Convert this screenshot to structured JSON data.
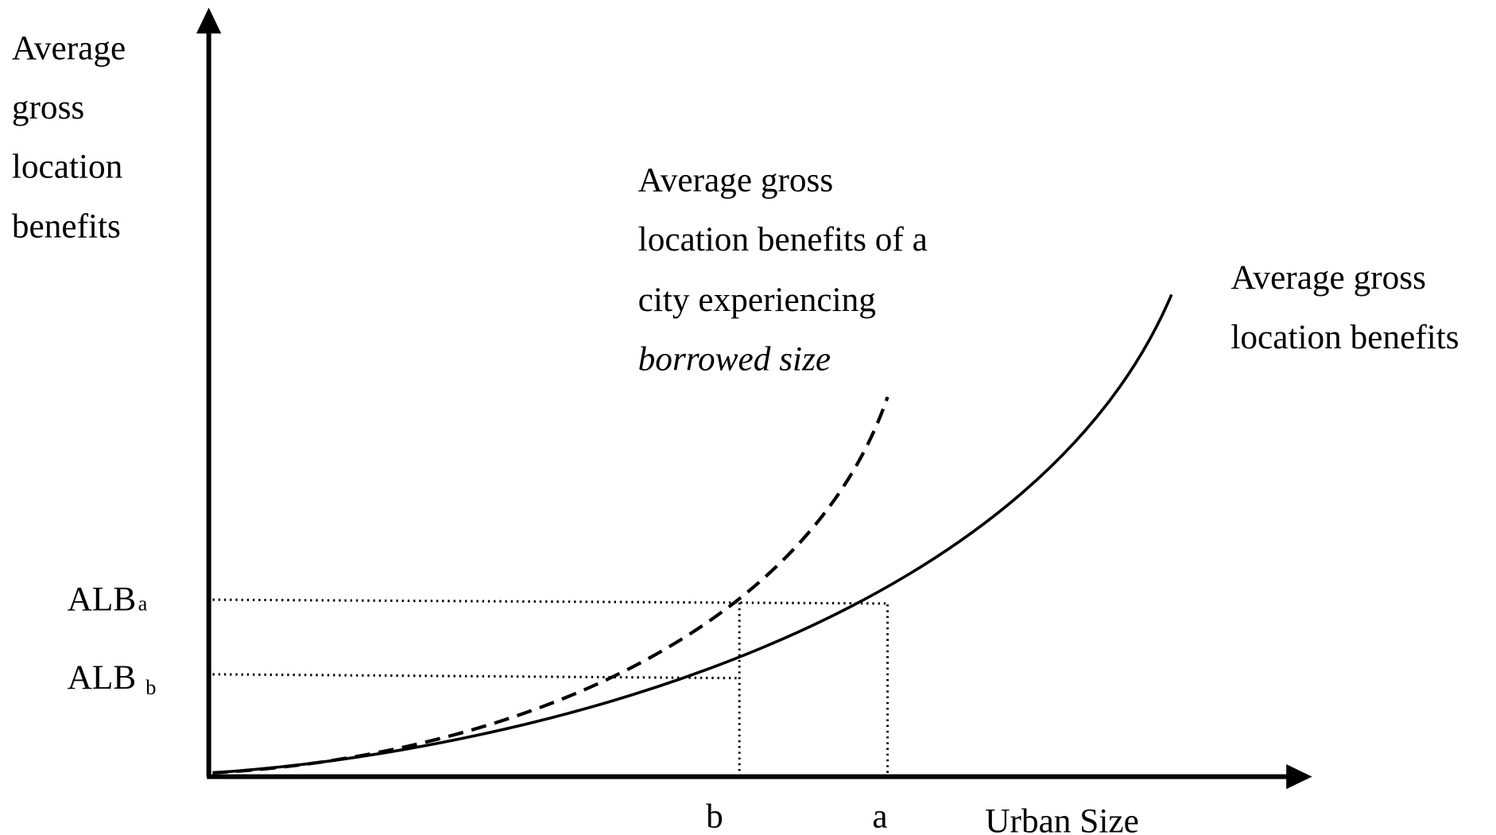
{
  "y_axis_label": [
    "Average",
    "gross",
    "location",
    "benefits"
  ],
  "x_axis_label": "Urban Size",
  "y_markers": [
    {
      "main": "ALB",
      "sub": "a"
    },
    {
      "main": "ALB",
      "sub": "b"
    }
  ],
  "x_markers": [
    "b",
    "a"
  ],
  "borrowed_curve_label": [
    "Average gross",
    "location benefits of a",
    "city experiencing",
    "borrowed size"
  ],
  "base_curve_label": [
    "Average gross",
    "location benefits"
  ]
}
